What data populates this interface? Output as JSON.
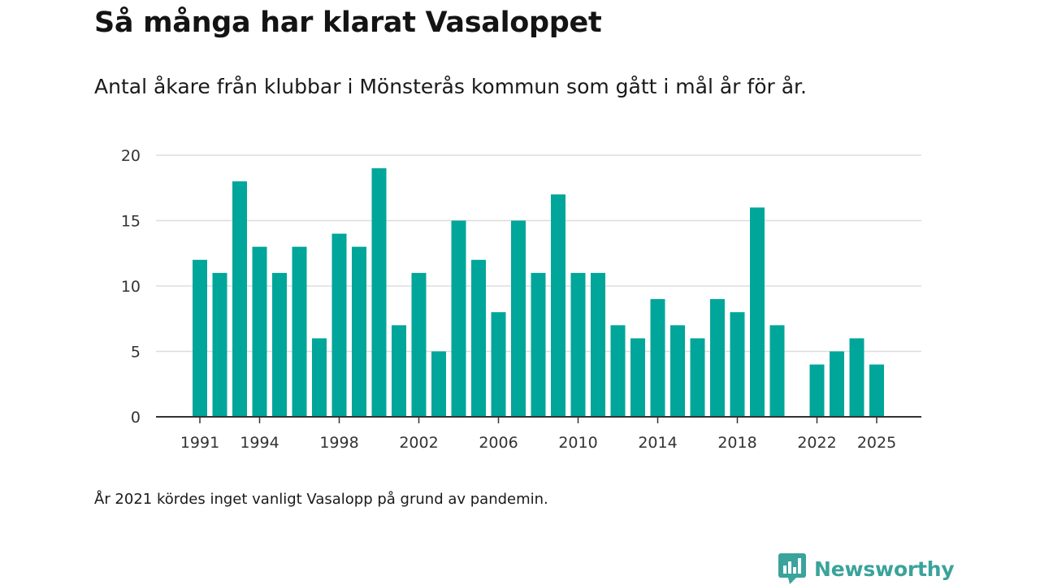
{
  "title": "Så många har klarat Vasaloppet",
  "subtitle": "Antal åkare från klubbar i Mönsterås kommun som gått i mål år för år.",
  "note": "År 2021 kördes inget vanligt Vasalopp på grund av pandemin.",
  "brand": {
    "name": "Newsworthy",
    "color": "#3aa39b",
    "icon": "newsworthy-logo-icon"
  },
  "chart_data": {
    "type": "bar",
    "title": "Så många har klarat Vasaloppet",
    "xlabel": "",
    "ylabel": "",
    "bar_color": "#00a69a",
    "grid": true,
    "ylim": [
      0,
      20
    ],
    "yticks": [
      0,
      5,
      10,
      15,
      20
    ],
    "xticks": [
      1991,
      1994,
      1998,
      2002,
      2006,
      2010,
      2014,
      2018,
      2022,
      2025
    ],
    "x": [
      1991,
      1992,
      1993,
      1994,
      1995,
      1996,
      1997,
      1998,
      1999,
      2000,
      2001,
      2002,
      2003,
      2004,
      2005,
      2006,
      2007,
      2008,
      2009,
      2010,
      2011,
      2012,
      2013,
      2014,
      2015,
      2016,
      2017,
      2018,
      2019,
      2020,
      2021,
      2022,
      2023,
      2024,
      2025
    ],
    "values": [
      12,
      11,
      18,
      13,
      11,
      13,
      6,
      14,
      13,
      19,
      7,
      11,
      5,
      15,
      12,
      8,
      15,
      11,
      17,
      11,
      11,
      7,
      6,
      9,
      7,
      6,
      9,
      8,
      16,
      7,
      null,
      4,
      5,
      6,
      4
    ]
  }
}
